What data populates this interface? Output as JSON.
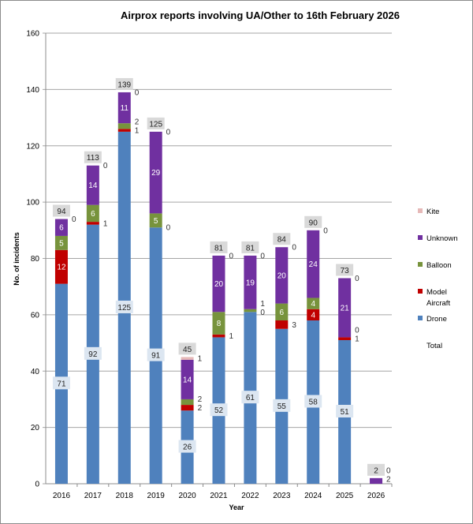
{
  "chart_data": {
    "type": "bar",
    "stacked": true,
    "title": "Airprox reports involving UA/Other to 16th February 2026",
    "xlabel": "Year",
    "ylabel": "No. of incidents",
    "ylim": [
      0,
      160
    ],
    "yticks": [
      0,
      20,
      40,
      60,
      80,
      100,
      120,
      140,
      160
    ],
    "grid": true,
    "legend_position": "right",
    "categories": [
      "2016",
      "2017",
      "2018",
      "2019",
      "2020",
      "2021",
      "2022",
      "2023",
      "2024",
      "2025",
      "2026"
    ],
    "series": [
      {
        "name": "Drone",
        "color": "#4f81bd",
        "values": [
          71,
          92,
          125,
          91,
          26,
          52,
          61,
          55,
          58,
          51,
          0
        ]
      },
      {
        "name": "Model Aircraft",
        "color": "#c00000",
        "values": [
          12,
          1,
          1,
          0,
          2,
          1,
          0,
          3,
          4,
          1,
          0
        ]
      },
      {
        "name": "Balloon",
        "color": "#77933c",
        "values": [
          5,
          6,
          2,
          5,
          2,
          8,
          1,
          6,
          4,
          0,
          0
        ]
      },
      {
        "name": "Unknown",
        "color": "#7030a0",
        "values": [
          6,
          14,
          11,
          29,
          14,
          20,
          19,
          20,
          24,
          21,
          2
        ]
      },
      {
        "name": "Kite",
        "color": "#e6b9b8",
        "values": [
          0,
          0,
          0,
          0,
          1,
          0,
          0,
          0,
          0,
          0,
          0
        ]
      }
    ],
    "totals": [
      94,
      113,
      139,
      125,
      45,
      81,
      81,
      84,
      90,
      73,
      2
    ],
    "total_legend_label": "Total"
  }
}
